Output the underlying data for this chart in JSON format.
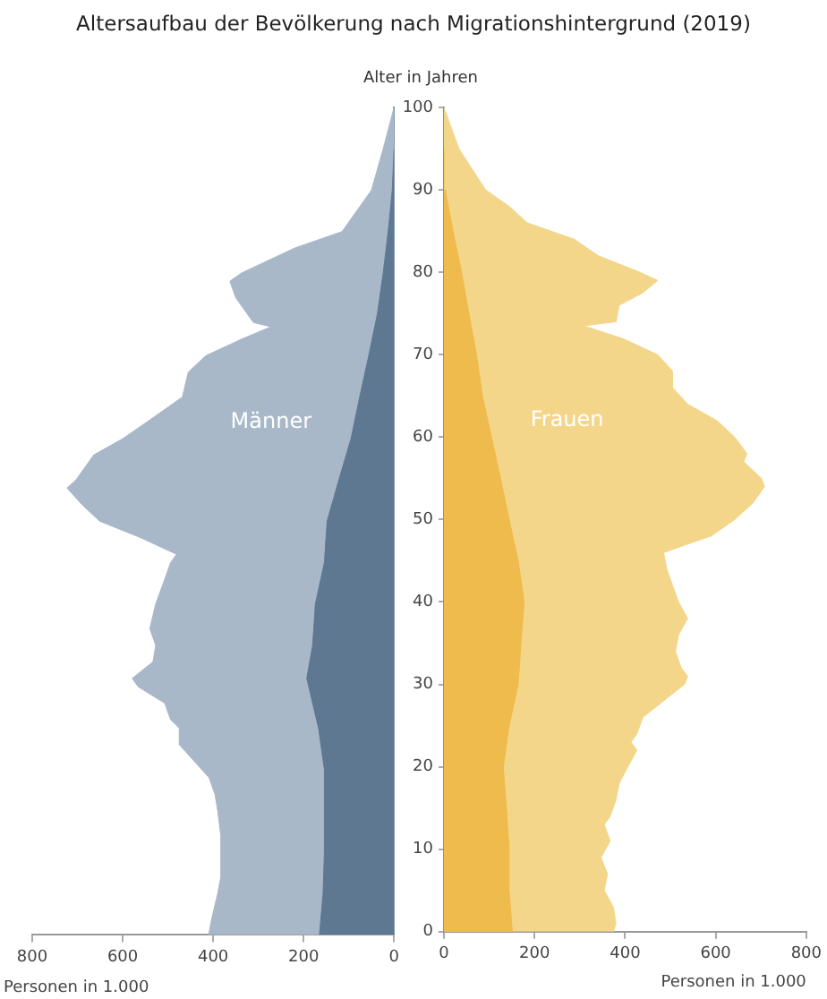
{
  "chart_data": [
    {
      "type": "area",
      "orientation": "horizontal",
      "title": "Altersaufbau der Bevölkerung nach Migrationshintergrund (2019)",
      "xlabel": "Personen in 1.000",
      "xlim": [
        800,
        0
      ],
      "xticks": [
        800,
        600,
        400,
        200,
        0
      ],
      "ylim": [
        0,
        100
      ],
      "yticks": [
        0,
        10,
        20,
        30,
        40,
        50,
        60,
        70,
        80,
        90,
        100
      ],
      "tick_labels": "x",
      "series": [
        {
          "name": "Männer",
          "color": "#a8b8c9",
          "x": [
            0,
            2,
            5,
            7,
            10,
            12,
            15,
            17,
            19,
            21,
            23,
            25,
            26,
            28,
            30,
            31,
            33,
            35,
            37,
            40,
            43,
            45,
            46,
            48,
            50,
            52,
            54,
            55,
            58,
            60,
            62,
            65,
            68,
            70,
            72,
            73.5,
            74,
            77,
            79,
            80,
            83,
            85,
            88,
            90,
            95,
            100
          ],
          "values": [
            410,
            403,
            390,
            383,
            383,
            383,
            390,
            396,
            409,
            442,
            475,
            475,
            494,
            507,
            566,
            579,
            533,
            527,
            540,
            527,
            507,
            494,
            481,
            560,
            651,
            690,
            723,
            703,
            664,
            599,
            546,
            468,
            455,
            416,
            337,
            272,
            311,
            350,
            363,
            337,
            220,
            115,
            76,
            50,
            24,
            0
          ]
        },
        {
          "color": "#5f7891",
          "x": [
            0,
            5,
            10,
            15,
            20,
            25,
            31,
            35,
            40,
            45,
            50,
            55,
            60,
            65,
            70,
            75,
            80,
            85,
            90,
            95
          ],
          "values": [
            165,
            157,
            154,
            154,
            154,
            167,
            193,
            180,
            174,
            154,
            148,
            122,
            95,
            76,
            56,
            37,
            24,
            13,
            4,
            0
          ]
        }
      ]
    },
    {
      "type": "area",
      "orientation": "horizontal",
      "xlabel": "Personen in 1.000",
      "ylabel": "Alter in Jahren",
      "xlim": [
        0,
        800
      ],
      "xticks": [
        0,
        200,
        400,
        600,
        800
      ],
      "ylim": [
        0,
        100
      ],
      "yticks": [
        0,
        10,
        20,
        30,
        40,
        50,
        60,
        70,
        80,
        90,
        100
      ],
      "series": [
        {
          "name": "Frauen",
          "color": "#f4d68a",
          "x": [
            0,
            1,
            3,
            5,
            7,
            9,
            11,
            13,
            14,
            16,
            18,
            20,
            22,
            23,
            24,
            26,
            28,
            30,
            31,
            32,
            34,
            36,
            38,
            40,
            42,
            44,
            46,
            48,
            50,
            52,
            54,
            55,
            57,
            58,
            60,
            62,
            64,
            66,
            68,
            70,
            72,
            73.5,
            74,
            76,
            77.5,
            79,
            80,
            82,
            84,
            86,
            88,
            90,
            95,
            100
          ],
          "values": [
            374,
            380,
            374,
            354,
            361,
            347,
            367,
            354,
            367,
            380,
            387,
            406,
            426,
            413,
            426,
            439,
            485,
            531,
            538,
            524,
            511,
            518,
            538,
            518,
            505,
            492,
            485,
            590,
            642,
            682,
            708,
            701,
            662,
            669,
            642,
            603,
            538,
            505,
            505,
            472,
            393,
            308,
            380,
            387,
            439,
            472,
            433,
            341,
            288,
            184,
            144,
            92,
            33,
            0
          ]
        },
        {
          "color": "#efbb4c",
          "x": [
            0,
            5,
            10,
            15,
            20,
            25,
            30,
            35,
            40,
            45,
            50,
            55,
            60,
            65,
            70,
            75,
            80,
            85,
            90,
            95
          ],
          "values": [
            151,
            144,
            144,
            138,
            131,
            144,
            164,
            170,
            177,
            164,
            144,
            125,
            105,
            85,
            72,
            55,
            39,
            20,
            3,
            0
          ]
        }
      ]
    }
  ]
}
